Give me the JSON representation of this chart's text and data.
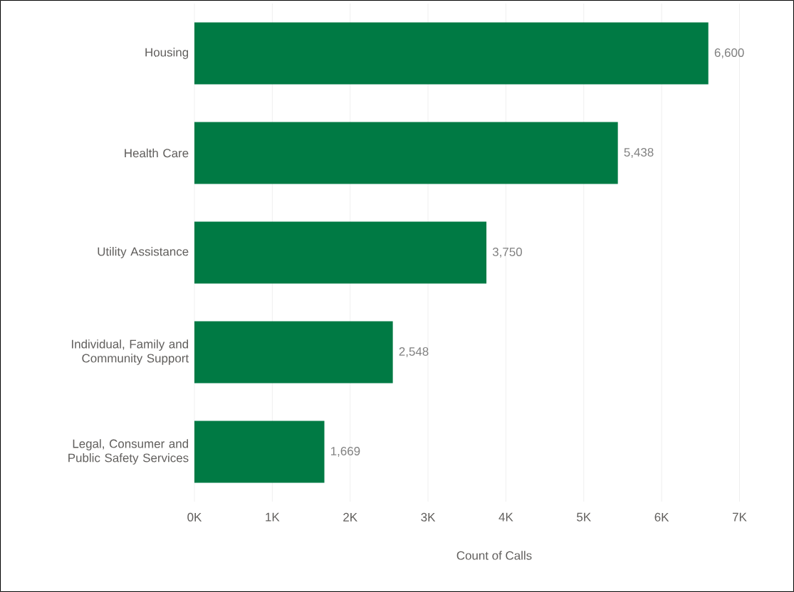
{
  "chart_data": {
    "type": "bar",
    "orientation": "horizontal",
    "categories": [
      "Housing",
      "Health Care",
      "Utility Assistance",
      "Individual, Family and Community Support",
      "Legal, Consumer and Public Safety Services"
    ],
    "values": [
      6600,
      5438,
      3750,
      2548,
      1669
    ],
    "value_labels": [
      "6,600",
      "5,438",
      "3,750",
      "2,548",
      "1,669"
    ],
    "color": "#007a44",
    "xlabel": "Count of Calls",
    "xlim": [
      0,
      7700
    ],
    "xticks": [
      {
        "value": 0,
        "label": "0K"
      },
      {
        "value": 1000,
        "label": "1K"
      },
      {
        "value": 2000,
        "label": "2K"
      },
      {
        "value": 3000,
        "label": "3K"
      },
      {
        "value": 4000,
        "label": "4K"
      },
      {
        "value": 5000,
        "label": "5K"
      },
      {
        "value": 6000,
        "label": "6K"
      },
      {
        "value": 7000,
        "label": "7K"
      }
    ],
    "grid": "x"
  }
}
